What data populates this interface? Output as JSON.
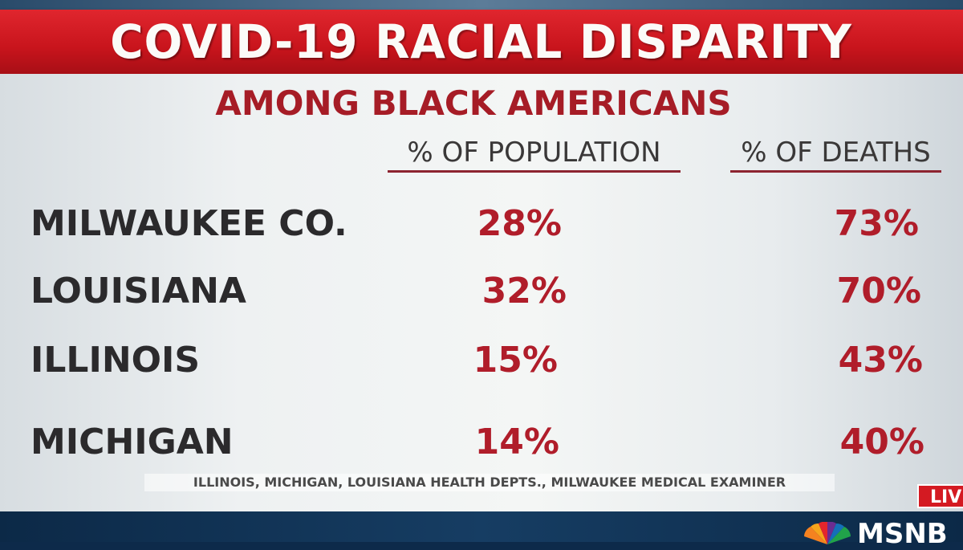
{
  "banner": {
    "title": "COVID-19 RACIAL DISPARITY"
  },
  "chart_data": {
    "type": "table",
    "title": "AMONG BLACK AMERICANS",
    "columns": [
      "% OF POPULATION",
      "% OF DEATHS"
    ],
    "rows": [
      {
        "label": "MILWAUKEE CO.",
        "population": "28%",
        "deaths": "73%"
      },
      {
        "label": "LOUISIANA",
        "population": "32%",
        "deaths": "70%"
      },
      {
        "label": "ILLINOIS",
        "population": "15%",
        "deaths": "43%"
      },
      {
        "label": "MICHIGAN",
        "population": "14%",
        "deaths": "40%"
      }
    ],
    "source": "ILLINOIS, MICHIGAN, LOUISIANA HEALTH DEPTS., MILWAUKEE MEDICAL EXAMINER"
  },
  "broadcast": {
    "live_label": "LIV",
    "network": "MSNB"
  },
  "colors": {
    "banner": "#d0181f",
    "value": "#b01d2a",
    "label": "#2b2a2c",
    "subtitle": "#a61c26"
  }
}
